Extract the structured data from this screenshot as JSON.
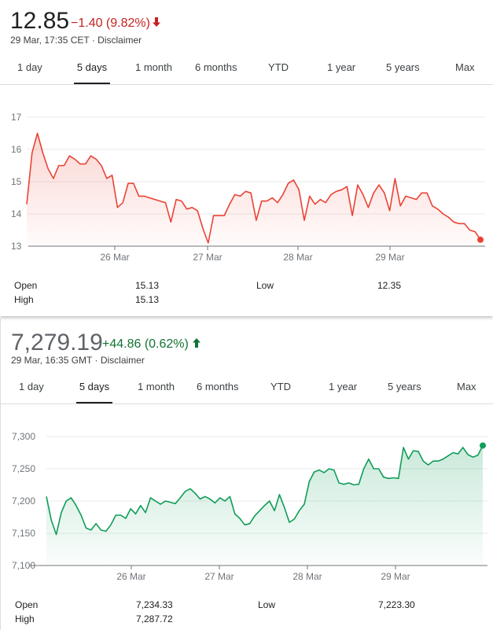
{
  "stock1": {
    "price": "12.85",
    "change": "−1.40 (9.82%)",
    "arrow": "🡫",
    "meta": "29 Mar, 17:35 CET · Disclaimer",
    "color_line": "#ea4335",
    "tabs": [
      "1 day",
      "5 days",
      "1 month",
      "6 months",
      "YTD",
      "1 year",
      "5 years",
      "Max"
    ],
    "active_tab": "5 days",
    "stats": {
      "open_label": "Open",
      "open_value": "15.13",
      "high_label": "High",
      "high_value": "15.13",
      "low_label": "Low",
      "low_value": "12.35"
    }
  },
  "stock2": {
    "price": "7,279.19",
    "change": "+44.86 (0.62%)",
    "arrow": "🡩",
    "meta": "29 Mar, 16:35 GMT · Disclaimer",
    "color_line": "#0f9d58",
    "tabs": [
      "1 day",
      "5 days",
      "1 month",
      "6 months",
      "YTD",
      "1 year",
      "5 years",
      "Max"
    ],
    "active_tab": "5 days",
    "stats": {
      "open_label": "Open",
      "open_value": "7,234.33",
      "high_label": "High",
      "high_value": "7,287.72",
      "low_label": "Low",
      "low_value": "7,223.30"
    }
  },
  "chart_data": [
    {
      "type": "area",
      "x_labels": [
        "26 Mar",
        "27 Mar",
        "28 Mar",
        "29 Mar"
      ],
      "y_ticks": [
        "13",
        "14",
        "15",
        "16",
        "17"
      ],
      "ylim": [
        13,
        17
      ],
      "color": "#ea4335",
      "values": [
        14.3,
        15.9,
        16.5,
        15.9,
        15.4,
        15.1,
        15.5,
        15.5,
        15.8,
        15.7,
        15.55,
        15.55,
        15.8,
        15.7,
        15.5,
        15.1,
        15.2,
        14.2,
        14.35,
        14.95,
        14.95,
        14.55,
        14.55,
        14.5,
        14.45,
        14.4,
        14.35,
        13.75,
        14.45,
        14.4,
        14.15,
        14.2,
        14.1,
        13.55,
        13.1,
        13.95,
        13.95,
        13.95,
        14.3,
        14.6,
        14.55,
        14.7,
        14.65,
        13.8,
        14.4,
        14.4,
        14.5,
        14.35,
        14.6,
        14.95,
        15.05,
        14.75,
        13.8,
        14.55,
        14.3,
        14.45,
        14.35,
        14.6,
        14.7,
        14.75,
        14.85,
        13.95,
        14.9,
        14.6,
        14.2,
        14.65,
        14.9,
        14.65,
        14.1,
        15.1,
        14.25,
        14.55,
        14.5,
        14.45,
        14.65,
        14.65,
        14.25,
        14.15,
        14.0,
        13.9,
        13.75,
        13.7,
        13.7,
        13.5,
        13.45,
        13.2
      ]
    },
    {
      "type": "area",
      "x_labels": [
        "26 Mar",
        "27 Mar",
        "28 Mar",
        "29 Mar"
      ],
      "y_ticks": [
        "7,100",
        "7,150",
        "7,200",
        "7,250",
        "7,300"
      ],
      "ylim": [
        7100,
        7300
      ],
      "color": "#0f9d58",
      "values": [
        7207,
        7170,
        7148,
        7182,
        7200,
        7205,
        7193,
        7178,
        7158,
        7155,
        7165,
        7155,
        7153,
        7163,
        7178,
        7178,
        7173,
        7188,
        7180,
        7193,
        7182,
        7205,
        7200,
        7195,
        7200,
        7198,
        7196,
        7205,
        7215,
        7219,
        7212,
        7203,
        7207,
        7203,
        7197,
        7205,
        7200,
        7207,
        7180,
        7173,
        7163,
        7165,
        7177,
        7185,
        7193,
        7200,
        7185,
        7210,
        7190,
        7167,
        7172,
        7185,
        7195,
        7230,
        7245,
        7248,
        7244,
        7250,
        7248,
        7228,
        7226,
        7228,
        7225,
        7226,
        7250,
        7265,
        7250,
        7250,
        7237,
        7235,
        7236,
        7235,
        7283,
        7265,
        7278,
        7277,
        7262,
        7256,
        7262,
        7262,
        7265,
        7270,
        7275,
        7273,
        7283,
        7272,
        7268,
        7271,
        7286
      ]
    }
  ]
}
